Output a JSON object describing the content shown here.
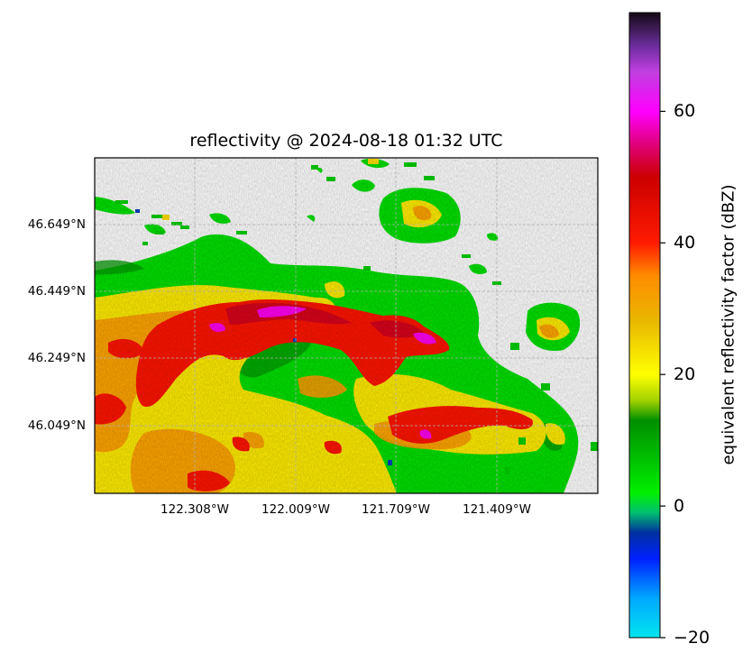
{
  "map": {
    "title": "reflectivity @ 2024-08-18 01:32 UTC",
    "lat_ticks": [
      "46.649°N",
      "46.449°N",
      "46.249°N",
      "46.049°N"
    ],
    "lon_ticks": [
      "122.308°W",
      "122.009°W",
      "121.709°W",
      "121.409°W"
    ],
    "gridlines": true
  },
  "colorbar": {
    "label": "equivalent reflectivity factor (dBZ)",
    "min": -20,
    "max": 75,
    "ticks": [
      "60",
      "40",
      "20",
      "0",
      "−20"
    ],
    "tick_values": [
      60,
      40,
      20,
      0,
      -20
    ],
    "stops": [
      {
        "v": -20,
        "c": "#00e5ee"
      },
      {
        "v": -14,
        "c": "#00a8ff"
      },
      {
        "v": -8,
        "c": "#0020ff"
      },
      {
        "v": -4,
        "c": "#0030a0"
      },
      {
        "v": -1,
        "c": "#00c070"
      },
      {
        "v": 2,
        "c": "#00f000"
      },
      {
        "v": 9,
        "c": "#00b000"
      },
      {
        "v": 13,
        "c": "#009000"
      },
      {
        "v": 16,
        "c": "#a0d000"
      },
      {
        "v": 20,
        "c": "#ffff00"
      },
      {
        "v": 28,
        "c": "#e8b800"
      },
      {
        "v": 35,
        "c": "#ff8c00"
      },
      {
        "v": 40,
        "c": "#ff1a00"
      },
      {
        "v": 50,
        "c": "#cc0000"
      },
      {
        "v": 55,
        "c": "#e0007a"
      },
      {
        "v": 60,
        "c": "#ff00ff"
      },
      {
        "v": 66,
        "c": "#c040e0"
      },
      {
        "v": 70,
        "c": "#6a2c9c"
      },
      {
        "v": 75,
        "c": "#140a14"
      }
    ]
  },
  "colors": {
    "weak": "#00e000",
    "moderate": "#ffef00",
    "heavy": "#ff1500",
    "extreme": "#ff00ff"
  }
}
